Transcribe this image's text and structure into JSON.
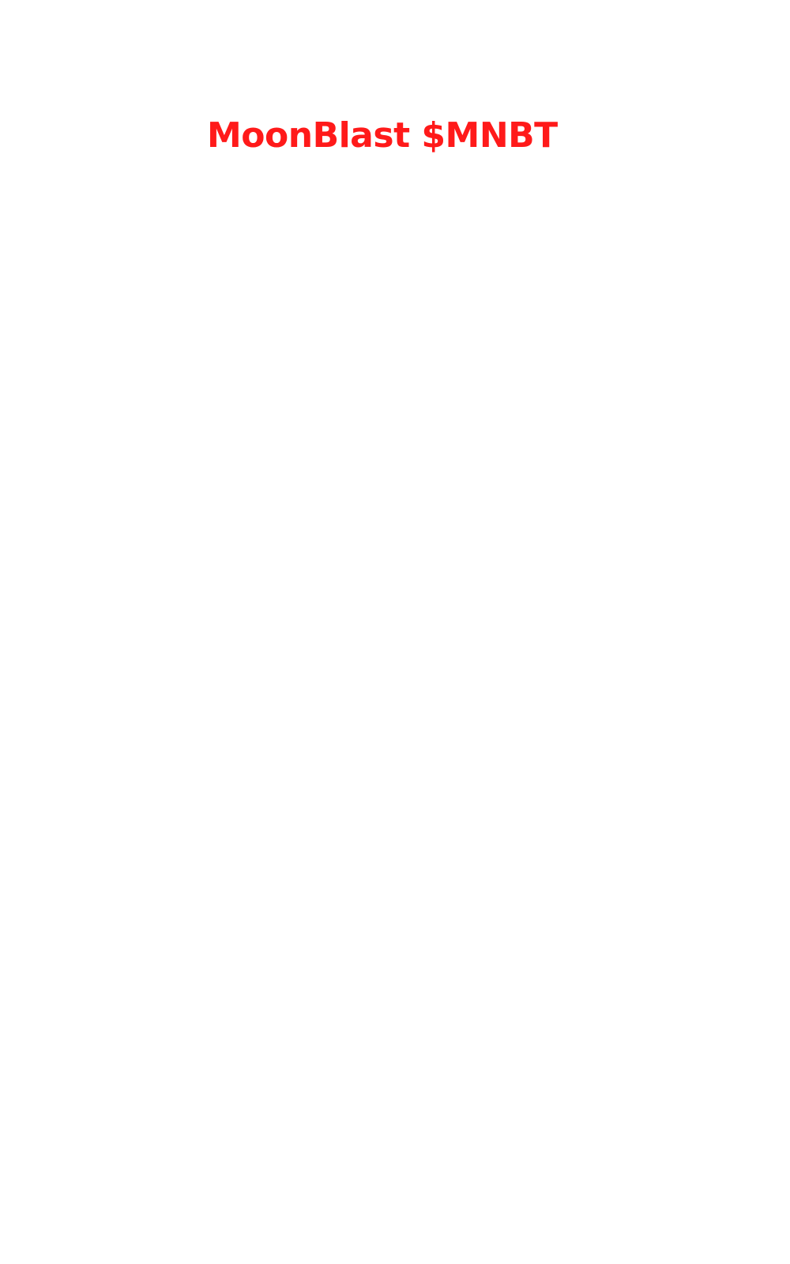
{
  "page": {
    "title": "MoonBlast $MNBT",
    "title_color": "#ff1a1a",
    "background_color": "#ffffff"
  }
}
